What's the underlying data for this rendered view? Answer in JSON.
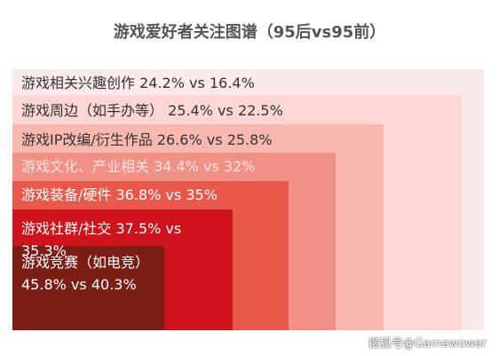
{
  "chart_data": {
    "type": "nested",
    "title": "游戏爱好者关注图谱（95后vs95前）",
    "categories": [
      "游戏相关兴趣创作",
      "游戏周边（如手办等）",
      "游戏IP改编/衍生作品",
      "游戏文化、产业相关",
      "游戏装备/硬件",
      "游戏社群/社交",
      "游戏竞赛（如电竞）"
    ],
    "separator": "vs",
    "series": [
      {
        "values": [
          24.2,
          25.4,
          26.6,
          34.4,
          36.8,
          37.5,
          45.8
        ],
        "value_labels": [
          "24.2%",
          "25.4%",
          "26.6%",
          "34.4%",
          "36.8%",
          "37.5%",
          "45.8%"
        ]
      },
      {
        "values": [
          16.4,
          22.5,
          25.8,
          32,
          35,
          35.3,
          40.3
        ],
        "value_labels": [
          "16.4%",
          "22.5%",
          "25.8%",
          "32%",
          "35%",
          "35.3%",
          "40.3%"
        ]
      }
    ],
    "colors": [
      "#fbeaea",
      "#fcd6d2",
      "#f8b8b0",
      "#f19085",
      "#e8594c",
      "#cf131c",
      "#7b1f16"
    ],
    "watermark": "搜狐号@Gamewower"
  }
}
